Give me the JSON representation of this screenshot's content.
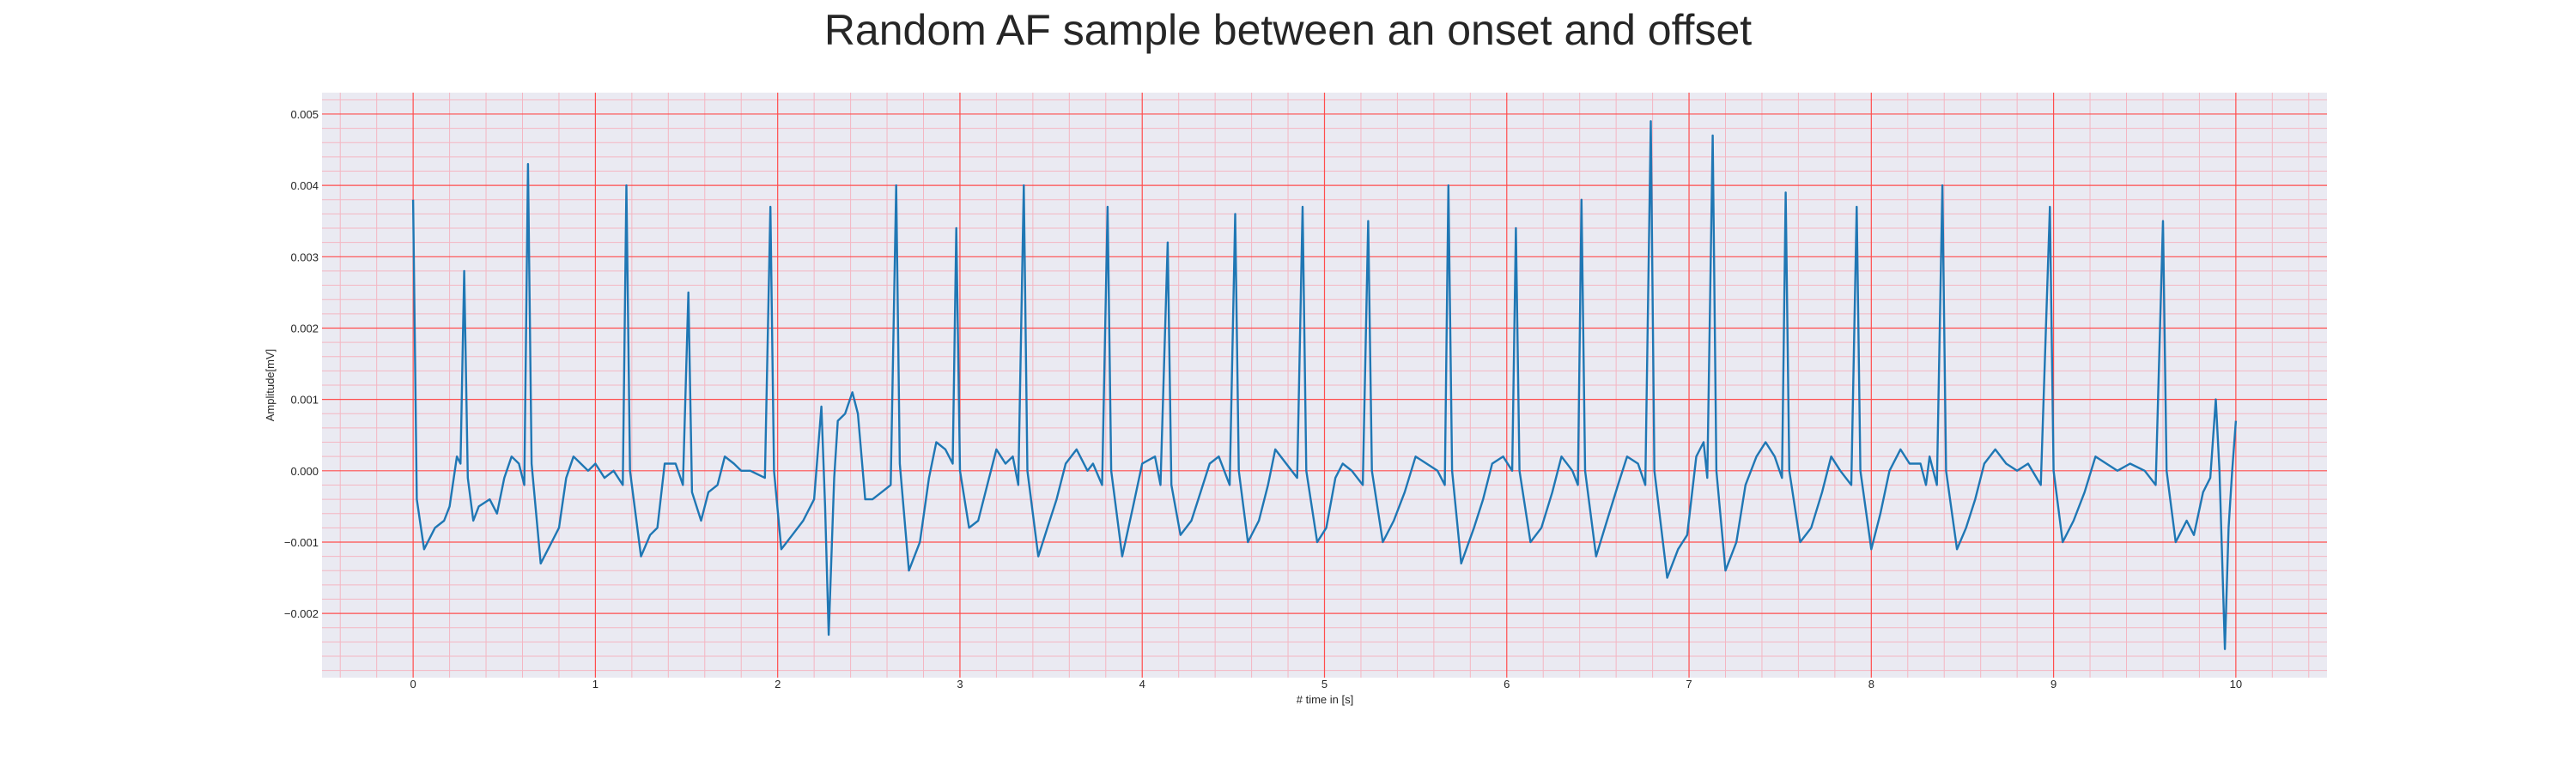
{
  "chart_data": {
    "type": "line",
    "title": "Random AF sample between an onset and offset",
    "xlabel": "# time in [s]",
    "ylabel": "Amplitude[mV]",
    "xlim": [
      -0.5,
      10.5
    ],
    "ylim": [
      -0.0029,
      0.0053
    ],
    "x_ticks": [
      0,
      1,
      2,
      3,
      4,
      5,
      6,
      7,
      8,
      9,
      10
    ],
    "y_ticks": [
      -0.002,
      -0.001,
      0.0,
      0.001,
      0.002,
      0.003,
      0.004,
      0.005
    ],
    "y_tick_labels": [
      "−0.002",
      "−0.001",
      "0.000",
      "0.001",
      "0.002",
      "0.003",
      "0.004",
      "0.005"
    ],
    "grid": true,
    "minor_grid": true,
    "colors": {
      "line": "#1f77b4",
      "plot_background": "#eaeaf2",
      "major_grid": "#ff4d4d",
      "minor_grid": "#f4b6c2"
    },
    "series": [
      {
        "points": [
          [
            0.0,
            0.0038
          ],
          [
            0.02,
            -0.0004
          ],
          [
            0.06,
            -0.0011
          ],
          [
            0.12,
            -0.0008
          ],
          [
            0.17,
            -0.0007
          ],
          [
            0.2,
            -0.0005
          ],
          [
            0.24,
            0.0002
          ],
          [
            0.26,
            0.0001
          ],
          [
            0.28,
            0.0028
          ],
          [
            0.3,
            -0.0001
          ],
          [
            0.33,
            -0.0007
          ],
          [
            0.36,
            -0.0005
          ],
          [
            0.42,
            -0.0004
          ],
          [
            0.46,
            -0.0006
          ],
          [
            0.5,
            -0.0001
          ],
          [
            0.54,
            0.0002
          ],
          [
            0.58,
            0.0001
          ],
          [
            0.61,
            -0.0002
          ],
          [
            0.63,
            0.0043
          ],
          [
            0.65,
            0.0001
          ],
          [
            0.7,
            -0.0013
          ],
          [
            0.76,
            -0.001
          ],
          [
            0.8,
            -0.0008
          ],
          [
            0.84,
            -0.0001
          ],
          [
            0.88,
            0.0002
          ],
          [
            0.92,
            0.0001
          ],
          [
            0.96,
            0.0
          ],
          [
            1.0,
            0.0001
          ],
          [
            1.05,
            -0.0001
          ],
          [
            1.1,
            0.0
          ],
          [
            1.15,
            -0.0002
          ],
          [
            1.17,
            0.004
          ],
          [
            1.19,
            0.0
          ],
          [
            1.25,
            -0.0012
          ],
          [
            1.3,
            -0.0009
          ],
          [
            1.34,
            -0.0008
          ],
          [
            1.38,
            0.0001
          ],
          [
            1.44,
            0.0001
          ],
          [
            1.48,
            -0.0002
          ],
          [
            1.51,
            0.0025
          ],
          [
            1.53,
            -0.0003
          ],
          [
            1.58,
            -0.0007
          ],
          [
            1.62,
            -0.0003
          ],
          [
            1.67,
            -0.0002
          ],
          [
            1.71,
            0.0002
          ],
          [
            1.76,
            0.0001
          ],
          [
            1.8,
            0.0
          ],
          [
            1.85,
            0.0
          ],
          [
            1.93,
            -0.0001
          ],
          [
            1.96,
            0.0037
          ],
          [
            1.98,
            0.0
          ],
          [
            2.02,
            -0.0011
          ],
          [
            2.08,
            -0.0009
          ],
          [
            2.14,
            -0.0007
          ],
          [
            2.2,
            -0.0004
          ],
          [
            2.24,
            0.0009
          ],
          [
            2.26,
            -0.0005
          ],
          [
            2.28,
            -0.0023
          ],
          [
            2.31,
            -0.0001
          ],
          [
            2.33,
            0.0007
          ],
          [
            2.37,
            0.0008
          ],
          [
            2.41,
            0.0011
          ],
          [
            2.44,
            0.0008
          ],
          [
            2.48,
            -0.0004
          ],
          [
            2.52,
            -0.0004
          ],
          [
            2.57,
            -0.0003
          ],
          [
            2.62,
            -0.0002
          ],
          [
            2.65,
            0.004
          ],
          [
            2.67,
            0.0001
          ],
          [
            2.72,
            -0.0014
          ],
          [
            2.78,
            -0.001
          ],
          [
            2.83,
            -0.0001
          ],
          [
            2.87,
            0.0004
          ],
          [
            2.92,
            0.0003
          ],
          [
            2.96,
            0.0001
          ],
          [
            2.98,
            0.0034
          ],
          [
            3.0,
            0.0
          ],
          [
            3.05,
            -0.0008
          ],
          [
            3.1,
            -0.0007
          ],
          [
            3.16,
            -0.0001
          ],
          [
            3.2,
            0.0003
          ],
          [
            3.25,
            0.0001
          ],
          [
            3.29,
            0.0002
          ],
          [
            3.32,
            -0.0002
          ],
          [
            3.35,
            0.004
          ],
          [
            3.37,
            0.0
          ],
          [
            3.43,
            -0.0012
          ],
          [
            3.48,
            -0.0008
          ],
          [
            3.53,
            -0.0004
          ],
          [
            3.58,
            0.0001
          ],
          [
            3.64,
            0.0003
          ],
          [
            3.7,
            0.0
          ],
          [
            3.73,
            0.0001
          ],
          [
            3.78,
            -0.0002
          ],
          [
            3.81,
            0.0037
          ],
          [
            3.83,
            0.0
          ],
          [
            3.89,
            -0.0012
          ],
          [
            3.95,
            -0.0005
          ],
          [
            4.0,
            0.0001
          ],
          [
            4.07,
            0.0002
          ],
          [
            4.1,
            -0.0002
          ],
          [
            4.14,
            0.0032
          ],
          [
            4.16,
            -0.0002
          ],
          [
            4.21,
            -0.0009
          ],
          [
            4.27,
            -0.0007
          ],
          [
            4.32,
            -0.0003
          ],
          [
            4.37,
            0.0001
          ],
          [
            4.42,
            0.0002
          ],
          [
            4.48,
            -0.0002
          ],
          [
            4.51,
            0.0036
          ],
          [
            4.53,
            0.0
          ],
          [
            4.58,
            -0.001
          ],
          [
            4.64,
            -0.0007
          ],
          [
            4.69,
            -0.0002
          ],
          [
            4.73,
            0.0003
          ],
          [
            4.79,
            0.0001
          ],
          [
            4.85,
            -0.0001
          ],
          [
            4.88,
            0.0037
          ],
          [
            4.9,
            0.0
          ],
          [
            4.96,
            -0.001
          ],
          [
            5.01,
            -0.0008
          ],
          [
            5.06,
            -0.0001
          ],
          [
            5.1,
            0.0001
          ],
          [
            5.15,
            0.0
          ],
          [
            5.21,
            -0.0002
          ],
          [
            5.24,
            0.0035
          ],
          [
            5.26,
            0.0
          ],
          [
            5.32,
            -0.001
          ],
          [
            5.38,
            -0.0007
          ],
          [
            5.44,
            -0.0003
          ],
          [
            5.5,
            0.0002
          ],
          [
            5.56,
            0.0001
          ],
          [
            5.62,
            0.0
          ],
          [
            5.66,
            -0.0002
          ],
          [
            5.68,
            0.004
          ],
          [
            5.7,
            0.0
          ],
          [
            5.75,
            -0.0013
          ],
          [
            5.82,
            -0.0008
          ],
          [
            5.87,
            -0.0004
          ],
          [
            5.92,
            0.0001
          ],
          [
            5.98,
            0.0002
          ],
          [
            6.03,
            0.0
          ],
          [
            6.05,
            0.0034
          ],
          [
            6.07,
            0.0
          ],
          [
            6.13,
            -0.001
          ],
          [
            6.19,
            -0.0008
          ],
          [
            6.25,
            -0.0003
          ],
          [
            6.3,
            0.0002
          ],
          [
            6.36,
            0.0
          ],
          [
            6.39,
            -0.0002
          ],
          [
            6.41,
            0.0038
          ],
          [
            6.43,
            0.0
          ],
          [
            6.49,
            -0.0012
          ],
          [
            6.55,
            -0.0007
          ],
          [
            6.61,
            -0.0002
          ],
          [
            6.66,
            0.0002
          ],
          [
            6.72,
            0.0001
          ],
          [
            6.76,
            -0.0002
          ],
          [
            6.79,
            0.0049
          ],
          [
            6.81,
            0.0
          ],
          [
            6.88,
            -0.0015
          ],
          [
            6.94,
            -0.0011
          ],
          [
            6.99,
            -0.0009
          ],
          [
            7.04,
            0.0002
          ],
          [
            7.08,
            0.0004
          ],
          [
            7.1,
            -0.0001
          ],
          [
            7.13,
            0.0047
          ],
          [
            7.15,
            0.0
          ],
          [
            7.2,
            -0.0014
          ],
          [
            7.26,
            -0.001
          ],
          [
            7.31,
            -0.0002
          ],
          [
            7.37,
            0.0002
          ],
          [
            7.42,
            0.0004
          ],
          [
            7.47,
            0.0002
          ],
          [
            7.51,
            -0.0001
          ],
          [
            7.53,
            0.0039
          ],
          [
            7.55,
            0.0
          ],
          [
            7.61,
            -0.001
          ],
          [
            7.67,
            -0.0008
          ],
          [
            7.73,
            -0.0003
          ],
          [
            7.78,
            0.0002
          ],
          [
            7.83,
            0.0
          ],
          [
            7.89,
            -0.0002
          ],
          [
            7.92,
            0.0037
          ],
          [
            7.94,
            0.0
          ],
          [
            8.0,
            -0.0011
          ],
          [
            8.05,
            -0.0006
          ],
          [
            8.1,
            0.0
          ],
          [
            8.16,
            0.0003
          ],
          [
            8.21,
            0.0001
          ],
          [
            8.27,
            0.0001
          ],
          [
            8.3,
            -0.0002
          ],
          [
            8.32,
            0.0002
          ],
          [
            8.36,
            -0.0002
          ],
          [
            8.39,
            0.004
          ],
          [
            8.41,
            0.0
          ],
          [
            8.47,
            -0.0011
          ],
          [
            8.52,
            -0.0008
          ],
          [
            8.57,
            -0.0004
          ],
          [
            8.62,
            0.0001
          ],
          [
            8.68,
            0.0003
          ],
          [
            8.74,
            0.0001
          ],
          [
            8.8,
            0.0
          ],
          [
            8.86,
            0.0001
          ],
          [
            8.93,
            -0.0002
          ],
          [
            8.98,
            0.0037
          ],
          [
            9.0,
            0.0
          ],
          [
            9.05,
            -0.001
          ],
          [
            9.11,
            -0.0007
          ],
          [
            9.17,
            -0.0003
          ],
          [
            9.23,
            0.0002
          ],
          [
            9.29,
            0.0001
          ],
          [
            9.35,
            0.0
          ],
          [
            9.42,
            0.0001
          ],
          [
            9.5,
            0.0
          ],
          [
            9.56,
            -0.0002
          ],
          [
            9.6,
            0.0035
          ],
          [
            9.62,
            0.0
          ],
          [
            9.67,
            -0.001
          ],
          [
            9.73,
            -0.0007
          ],
          [
            9.77,
            -0.0009
          ],
          [
            9.82,
            -0.0003
          ],
          [
            9.86,
            -0.0001
          ],
          [
            9.89,
            0.001
          ],
          [
            9.91,
            0.0
          ],
          [
            9.94,
            -0.0025
          ],
          [
            9.96,
            -0.0008
          ],
          [
            9.98,
            0.0
          ],
          [
            10.0,
            0.0007
          ]
        ]
      }
    ]
  }
}
